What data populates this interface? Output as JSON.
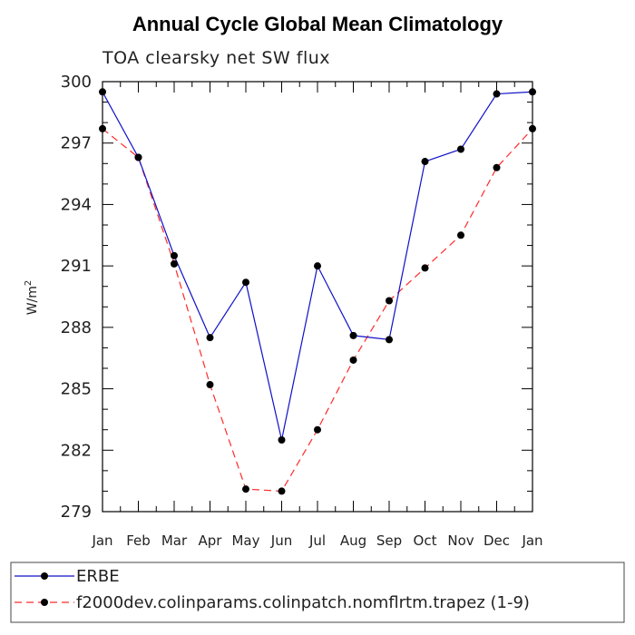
{
  "chart_data": {
    "type": "line",
    "title": "Annual Cycle Global Mean Climatology",
    "subtitle": "TOA clearsky net SW flux",
    "xlabel": "",
    "ylabel": "W/m",
    "ylabel_superscript": "2",
    "categories": [
      "Jan",
      "Feb",
      "Mar",
      "Apr",
      "May",
      "Jun",
      "Jul",
      "Aug",
      "Sep",
      "Oct",
      "Nov",
      "Dec",
      "Jan"
    ],
    "ylim": [
      279,
      300
    ],
    "yticks": [
      "279",
      "282",
      "285",
      "288",
      "291",
      "294",
      "297",
      "300"
    ],
    "series": [
      {
        "name": "ERBE",
        "color": "#1010c8",
        "dash": "solid",
        "values": [
          299.5,
          296.3,
          291.5,
          287.5,
          290.2,
          282.5,
          291.0,
          287.6,
          287.4,
          296.1,
          296.7,
          299.4,
          299.5
        ]
      },
      {
        "name": "f2000dev.colinparams.colinpatch.nomflrtm.trapez (1-9)",
        "color": "#ff2a2a",
        "dash": "dashed",
        "values": [
          297.7,
          296.3,
          291.1,
          285.2,
          280.1,
          280.0,
          283.0,
          286.4,
          289.3,
          290.9,
          292.5,
          295.8,
          297.7
        ]
      }
    ],
    "legend": {
      "placement": "bottom"
    }
  }
}
